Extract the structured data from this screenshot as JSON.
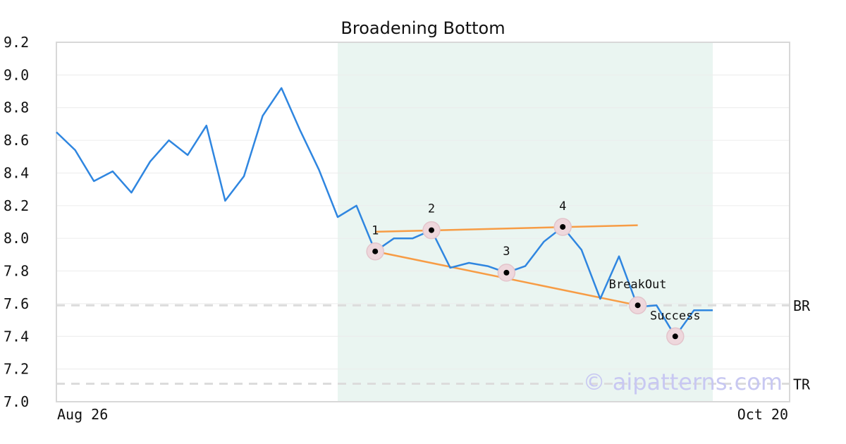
{
  "chart_data": {
    "type": "line",
    "title": "Broadening Bottom",
    "ylim": [
      7.0,
      9.2
    ],
    "yticks": [
      "7.0",
      "7.2",
      "7.4",
      "7.6",
      "7.8",
      "8.0",
      "8.2",
      "8.4",
      "8.6",
      "8.8",
      "9.0",
      "9.2"
    ],
    "xtick_labels": {
      "first": "Aug 26",
      "last": "Oct 20"
    },
    "grid": true,
    "series": [
      {
        "values": [
          8.65,
          8.54,
          8.35,
          8.41,
          8.28,
          8.47,
          8.6,
          8.51,
          8.69,
          8.23,
          8.38,
          8.75,
          8.92,
          8.66,
          8.42,
          8.13,
          8.2,
          7.92,
          8.0,
          8.0,
          8.05,
          7.82,
          7.85,
          7.83,
          7.79,
          7.83,
          7.98,
          8.07,
          7.93,
          7.63,
          7.89,
          7.58,
          7.59,
          7.4,
          7.56,
          7.56
        ],
        "color": "#2f86e0"
      }
    ],
    "pattern_region": {
      "start_index": 15,
      "end_index": 35,
      "color": "#eaf5f1"
    },
    "trendlines": [
      {
        "from": {
          "index": 17,
          "value": 8.04
        },
        "to": {
          "index": 31,
          "value": 8.08
        },
        "color": "#f79c45"
      },
      {
        "from": {
          "index": 17,
          "value": 7.92
        },
        "to": {
          "index": 31,
          "value": 7.59
        },
        "color": "#f79c45"
      }
    ],
    "markers": [
      {
        "index": 17,
        "value": 7.92,
        "label": "1",
        "label_pos": "above"
      },
      {
        "index": 20,
        "value": 8.05,
        "label": "2",
        "label_pos": "above"
      },
      {
        "index": 24,
        "value": 7.79,
        "label": "3",
        "label_pos": "above"
      },
      {
        "index": 27,
        "value": 8.07,
        "label": "4",
        "label_pos": "above"
      },
      {
        "index": 31,
        "value": 7.59,
        "label": "BreakOut",
        "label_pos": "above"
      },
      {
        "index": 33,
        "value": 7.4,
        "label": "Success",
        "label_pos": "above"
      }
    ],
    "levels": [
      {
        "label": "BR",
        "value": 7.59
      },
      {
        "label": "TR",
        "value": 7.11
      }
    ]
  },
  "watermark": "© aipatterns.com"
}
